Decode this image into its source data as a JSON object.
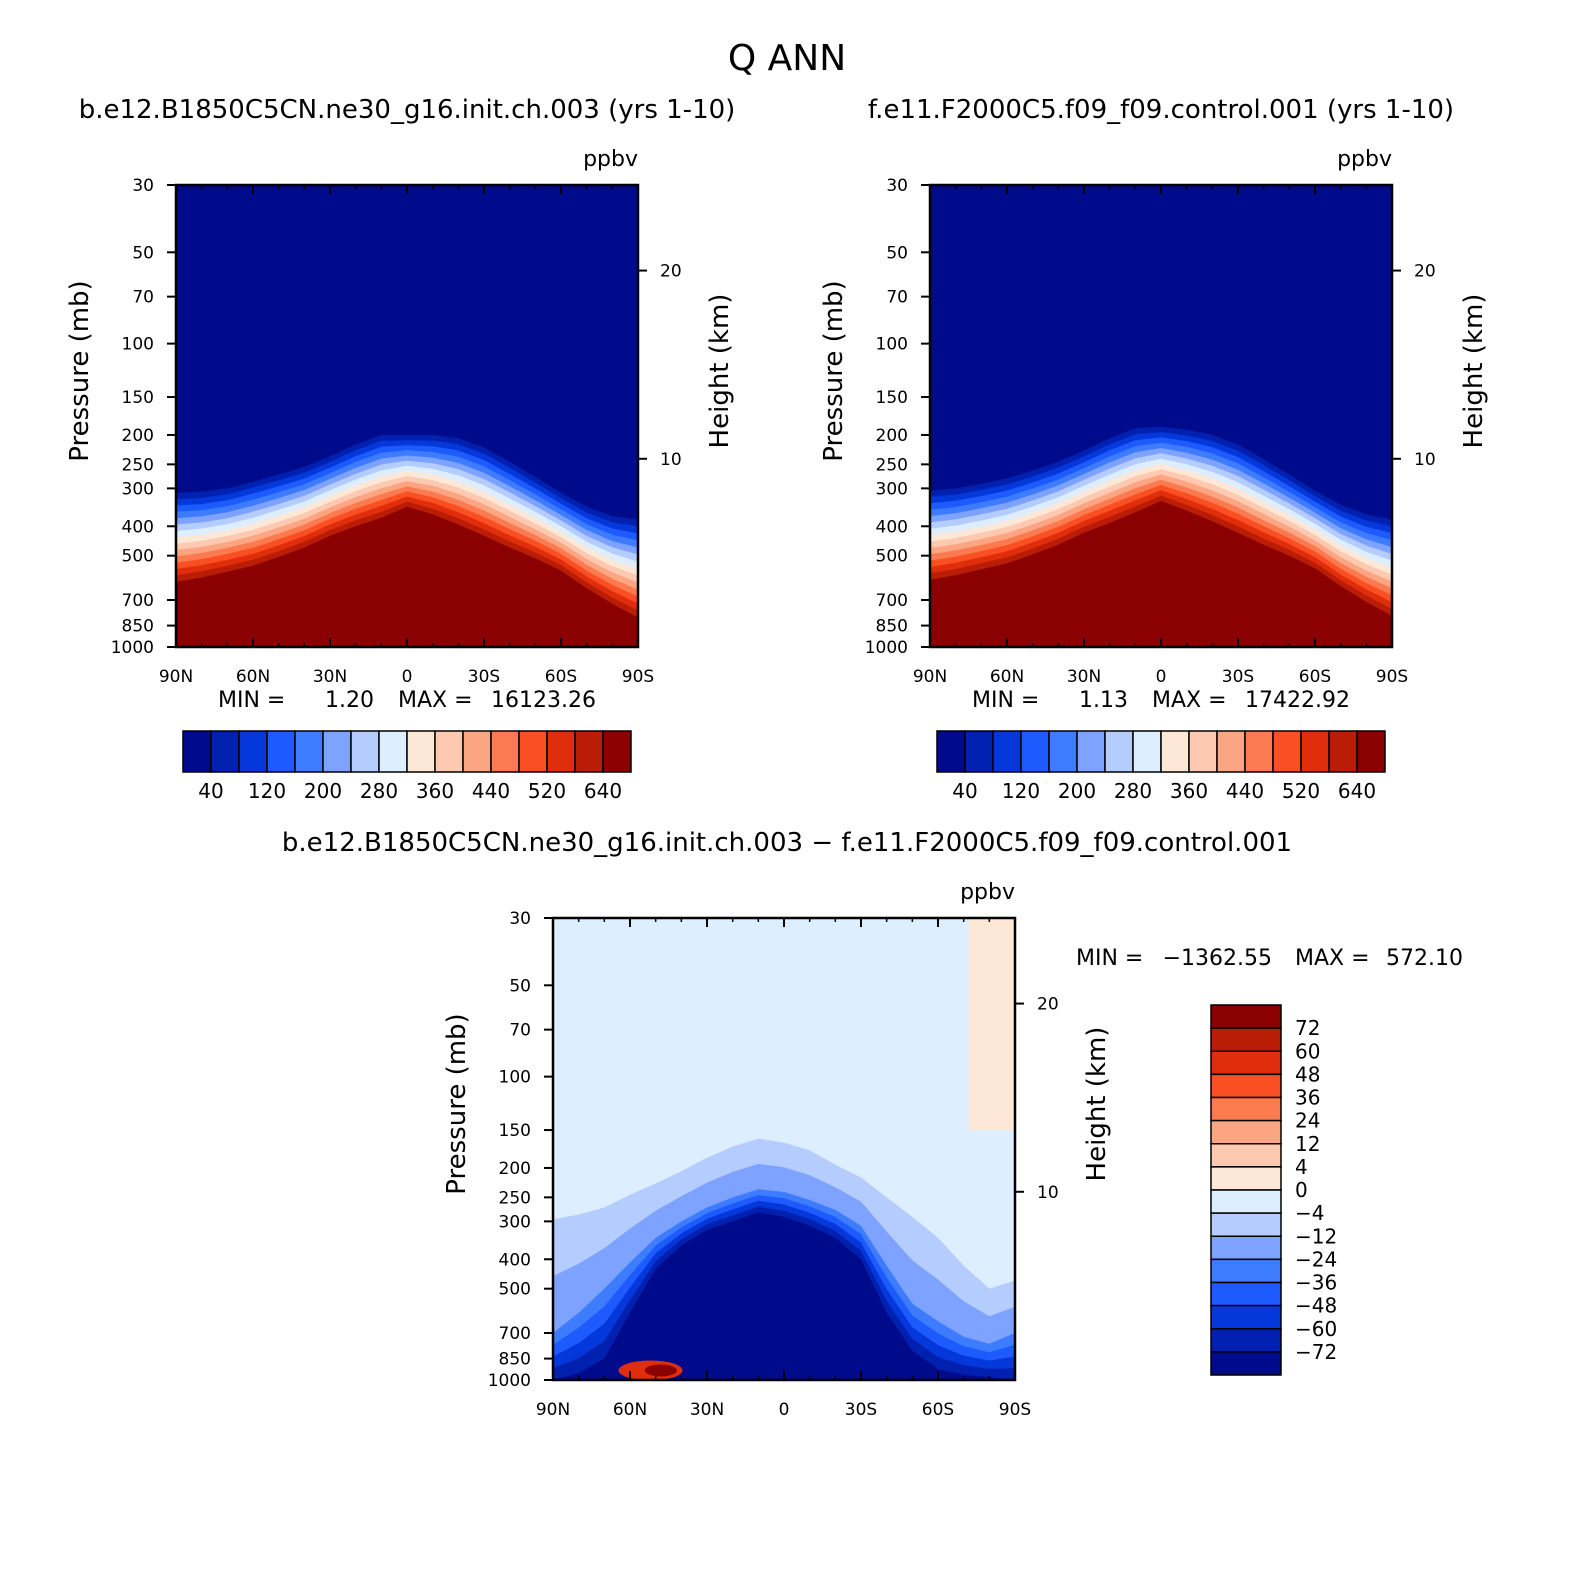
{
  "main_title": "Q ANN",
  "chart_data": [
    {
      "type": "heatmap",
      "id": "case1",
      "title": "b.e12.B1850C5CN.ne30_g16.init.ch.003 (yrs 1-10)",
      "units": "ppbv",
      "ylabel": "Pressure (mb)",
      "ylabel_right": "Height (km)",
      "xticks": [
        "90N",
        "60N",
        "30N",
        "0",
        "30S",
        "60S",
        "90S"
      ],
      "xlim": [
        90,
        -90
      ],
      "yticks": [
        30,
        50,
        70,
        100,
        150,
        200,
        250,
        300,
        400,
        500,
        700,
        850,
        1000
      ],
      "ylim": [
        30,
        1000
      ],
      "height_ticks": [
        20,
        10
      ],
      "min_label": "MIN =",
      "min_value": "1.20",
      "max_label": "MAX =",
      "max_value": "16123.26",
      "tropopause_pressure": [
        310,
        308,
        300,
        285,
        270,
        255,
        235,
        215,
        200,
        200,
        200,
        205,
        220,
        245,
        275,
        310,
        345,
        370,
        380
      ],
      "surface_layer_pressure": [
        610,
        590,
        565,
        540,
        505,
        470,
        430,
        400,
        375,
        345,
        365,
        395,
        430,
        470,
        510,
        560,
        640,
        720,
        800
      ],
      "colorbar": {
        "colors": [
          "#000b8c",
          "#0020b0",
          "#0438da",
          "#1e5bff",
          "#3d7cff",
          "#7da2ff",
          "#b5ccff",
          "#dceeff",
          "#fde8d8",
          "#fdc9b0",
          "#fca583",
          "#fc7a4f",
          "#fa4f23",
          "#e02d0c",
          "#b91d05",
          "#8b0000"
        ],
        "labels": [
          "40",
          "120",
          "200",
          "280",
          "360",
          "440",
          "520",
          "640"
        ]
      }
    },
    {
      "type": "heatmap",
      "id": "case2",
      "title": "f.e11.F2000C5.f09_f09.control.001 (yrs 1-10)",
      "units": "ppbv",
      "ylabel": "Pressure (mb)",
      "ylabel_right": "Height (km)",
      "xticks": [
        "90N",
        "60N",
        "30N",
        "0",
        "30S",
        "60S",
        "90S"
      ],
      "xlim": [
        90,
        -90
      ],
      "yticks": [
        30,
        50,
        70,
        100,
        150,
        200,
        250,
        300,
        400,
        500,
        700,
        850,
        1000
      ],
      "ylim": [
        30,
        1000
      ],
      "height_ticks": [
        20,
        10
      ],
      "min_label": "MIN =",
      "min_value": "1.13",
      "max_label": "MAX =",
      "max_value": "17422.92",
      "tropopause_pressure": [
        305,
        300,
        290,
        278,
        262,
        245,
        225,
        205,
        190,
        188,
        192,
        200,
        215,
        240,
        270,
        305,
        340,
        365,
        380
      ],
      "surface_layer_pressure": [
        600,
        580,
        555,
        530,
        495,
        460,
        420,
        390,
        360,
        330,
        355,
        385,
        420,
        460,
        500,
        550,
        630,
        710,
        790
      ],
      "colorbar": {
        "colors": [
          "#000b8c",
          "#0020b0",
          "#0438da",
          "#1e5bff",
          "#3d7cff",
          "#7da2ff",
          "#b5ccff",
          "#dceeff",
          "#fde8d8",
          "#fdc9b0",
          "#fca583",
          "#fc7a4f",
          "#fa4f23",
          "#e02d0c",
          "#b91d05",
          "#8b0000"
        ],
        "labels": [
          "40",
          "120",
          "200",
          "280",
          "360",
          "440",
          "520",
          "640"
        ]
      }
    },
    {
      "type": "heatmap",
      "id": "difference",
      "title": "b.e12.B1850C5CN.ne30_g16.init.ch.003 - f.e11.F2000C5.f09_f09.control.001",
      "units": "ppbv",
      "ylabel": "Pressure (mb)",
      "ylabel_right": "Height (km)",
      "xticks": [
        "90N",
        "60N",
        "30N",
        "0",
        "30S",
        "60S",
        "90S"
      ],
      "xlim": [
        90,
        -90
      ],
      "yticks": [
        30,
        50,
        70,
        100,
        150,
        200,
        250,
        300,
        400,
        500,
        700,
        850,
        1000
      ],
      "ylim": [
        30,
        1000
      ],
      "height_ticks": [
        20,
        10
      ],
      "min_label": "MIN =",
      "min_value": "-1362.55",
      "max_label": "MAX =",
      "max_value": "572.10",
      "contour_pressure_minus4": [
        295,
        285,
        270,
        245,
        225,
        205,
        185,
        170,
        160,
        165,
        175,
        195,
        215,
        250,
        290,
        340,
        420,
        500,
        470
      ],
      "contour_pressure_minus24": [
        700,
        600,
        500,
        410,
        340,
        300,
        270,
        250,
        235,
        240,
        255,
        275,
        310,
        420,
        560,
        640,
        720,
        760,
        700
      ],
      "contour_pressure_minus72": [
        1000,
        950,
        850,
        600,
        430,
        360,
        320,
        300,
        280,
        290,
        310,
        340,
        400,
        600,
        800,
        920,
        960,
        980,
        1000
      ],
      "positive_region": {
        "lat_range": [
          -72,
          -90
        ],
        "p_range": [
          30,
          150
        ],
        "class": "0 to 4"
      },
      "colorbar": {
        "colors": [
          "#000b8c",
          "#0020b0",
          "#0438da",
          "#1e5bff",
          "#3d7cff",
          "#7da2ff",
          "#b5ccff",
          "#dceeff",
          "#fde8d8",
          "#fdc9b0",
          "#fca583",
          "#fc7a4f",
          "#fa4f23",
          "#e02d0c",
          "#b91d05",
          "#8b0000"
        ],
        "labels": [
          "72",
          "60",
          "48",
          "36",
          "24",
          "12",
          "4",
          "0",
          "-4",
          "-12",
          "-24",
          "-36",
          "-48",
          "-60",
          "-72"
        ]
      }
    }
  ]
}
